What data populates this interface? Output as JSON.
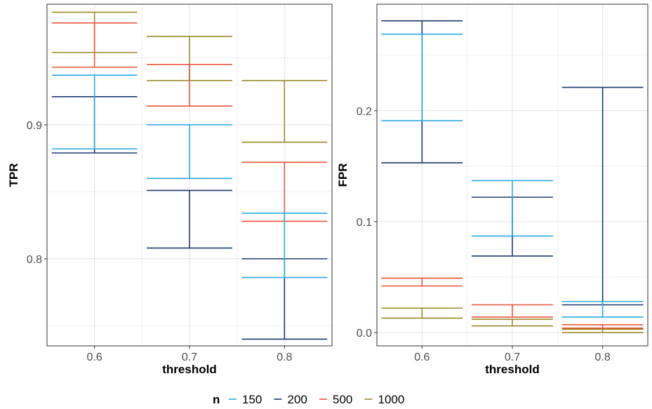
{
  "colors": {
    "150": "#29aae1",
    "200": "#1f3a6e",
    "500": "#e8553a",
    "1000": "#9a8a2c",
    "grid_major": "#e3e3e3",
    "grid_minor": "#f1f1f1",
    "frame": "#333333"
  },
  "legend": {
    "title": "n",
    "items": [
      {
        "label": "150",
        "color_key": "150"
      },
      {
        "label": "200",
        "color_key": "200"
      },
      {
        "label": "500",
        "color_key": "500"
      },
      {
        "label": "1000",
        "color_key": "1000"
      }
    ]
  },
  "chart_data": [
    {
      "type": "errorbar",
      "xlabel": "threshold",
      "ylabel": "TPR",
      "categories": [
        "0.6",
        "0.7",
        "0.8"
      ],
      "ylim": [
        0.735,
        0.99
      ],
      "yticks": [
        0.8,
        0.9
      ],
      "ytick_labels": [
        "0.8",
        "0.9"
      ],
      "grid": true,
      "series": [
        {
          "name": "150",
          "intervals": [
            [
              0.882,
              0.937
            ],
            [
              0.86,
              0.9
            ],
            [
              0.786,
              0.834
            ]
          ]
        },
        {
          "name": "200",
          "intervals": [
            [
              0.879,
              0.921
            ],
            [
              0.808,
              0.851
            ],
            [
              0.74,
              0.8
            ]
          ]
        },
        {
          "name": "500",
          "intervals": [
            [
              0.943,
              0.976
            ],
            [
              0.914,
              0.945
            ],
            [
              0.828,
              0.872
            ]
          ]
        },
        {
          "name": "1000",
          "intervals": [
            [
              0.954,
              0.984
            ],
            [
              0.933,
              0.966
            ],
            [
              0.887,
              0.933
            ]
          ]
        }
      ]
    },
    {
      "type": "errorbar",
      "xlabel": "threshold",
      "ylabel": "FPR",
      "categories": [
        "0.6",
        "0.7",
        "0.8"
      ],
      "ylim": [
        -0.012,
        0.296
      ],
      "yticks": [
        0.0,
        0.1,
        0.2
      ],
      "ytick_labels": [
        "0.0",
        "0.1",
        "0.2"
      ],
      "grid": true,
      "series": [
        {
          "name": "150",
          "intervals": [
            [
              0.191,
              0.269
            ],
            [
              0.087,
              0.137
            ],
            [
              0.014,
              0.028
            ]
          ]
        },
        {
          "name": "200",
          "intervals": [
            [
              0.153,
              0.281
            ],
            [
              0.069,
              0.122
            ],
            [
              0.025,
              0.221
            ]
          ]
        },
        {
          "name": "500",
          "intervals": [
            [
              0.042,
              0.049
            ],
            [
              0.014,
              0.025
            ],
            [
              0.004,
              0.007
            ]
          ]
        },
        {
          "name": "1000",
          "intervals": [
            [
              0.013,
              0.022
            ],
            [
              0.006,
              0.012
            ],
            [
              0.0,
              0.003
            ]
          ]
        }
      ]
    }
  ]
}
